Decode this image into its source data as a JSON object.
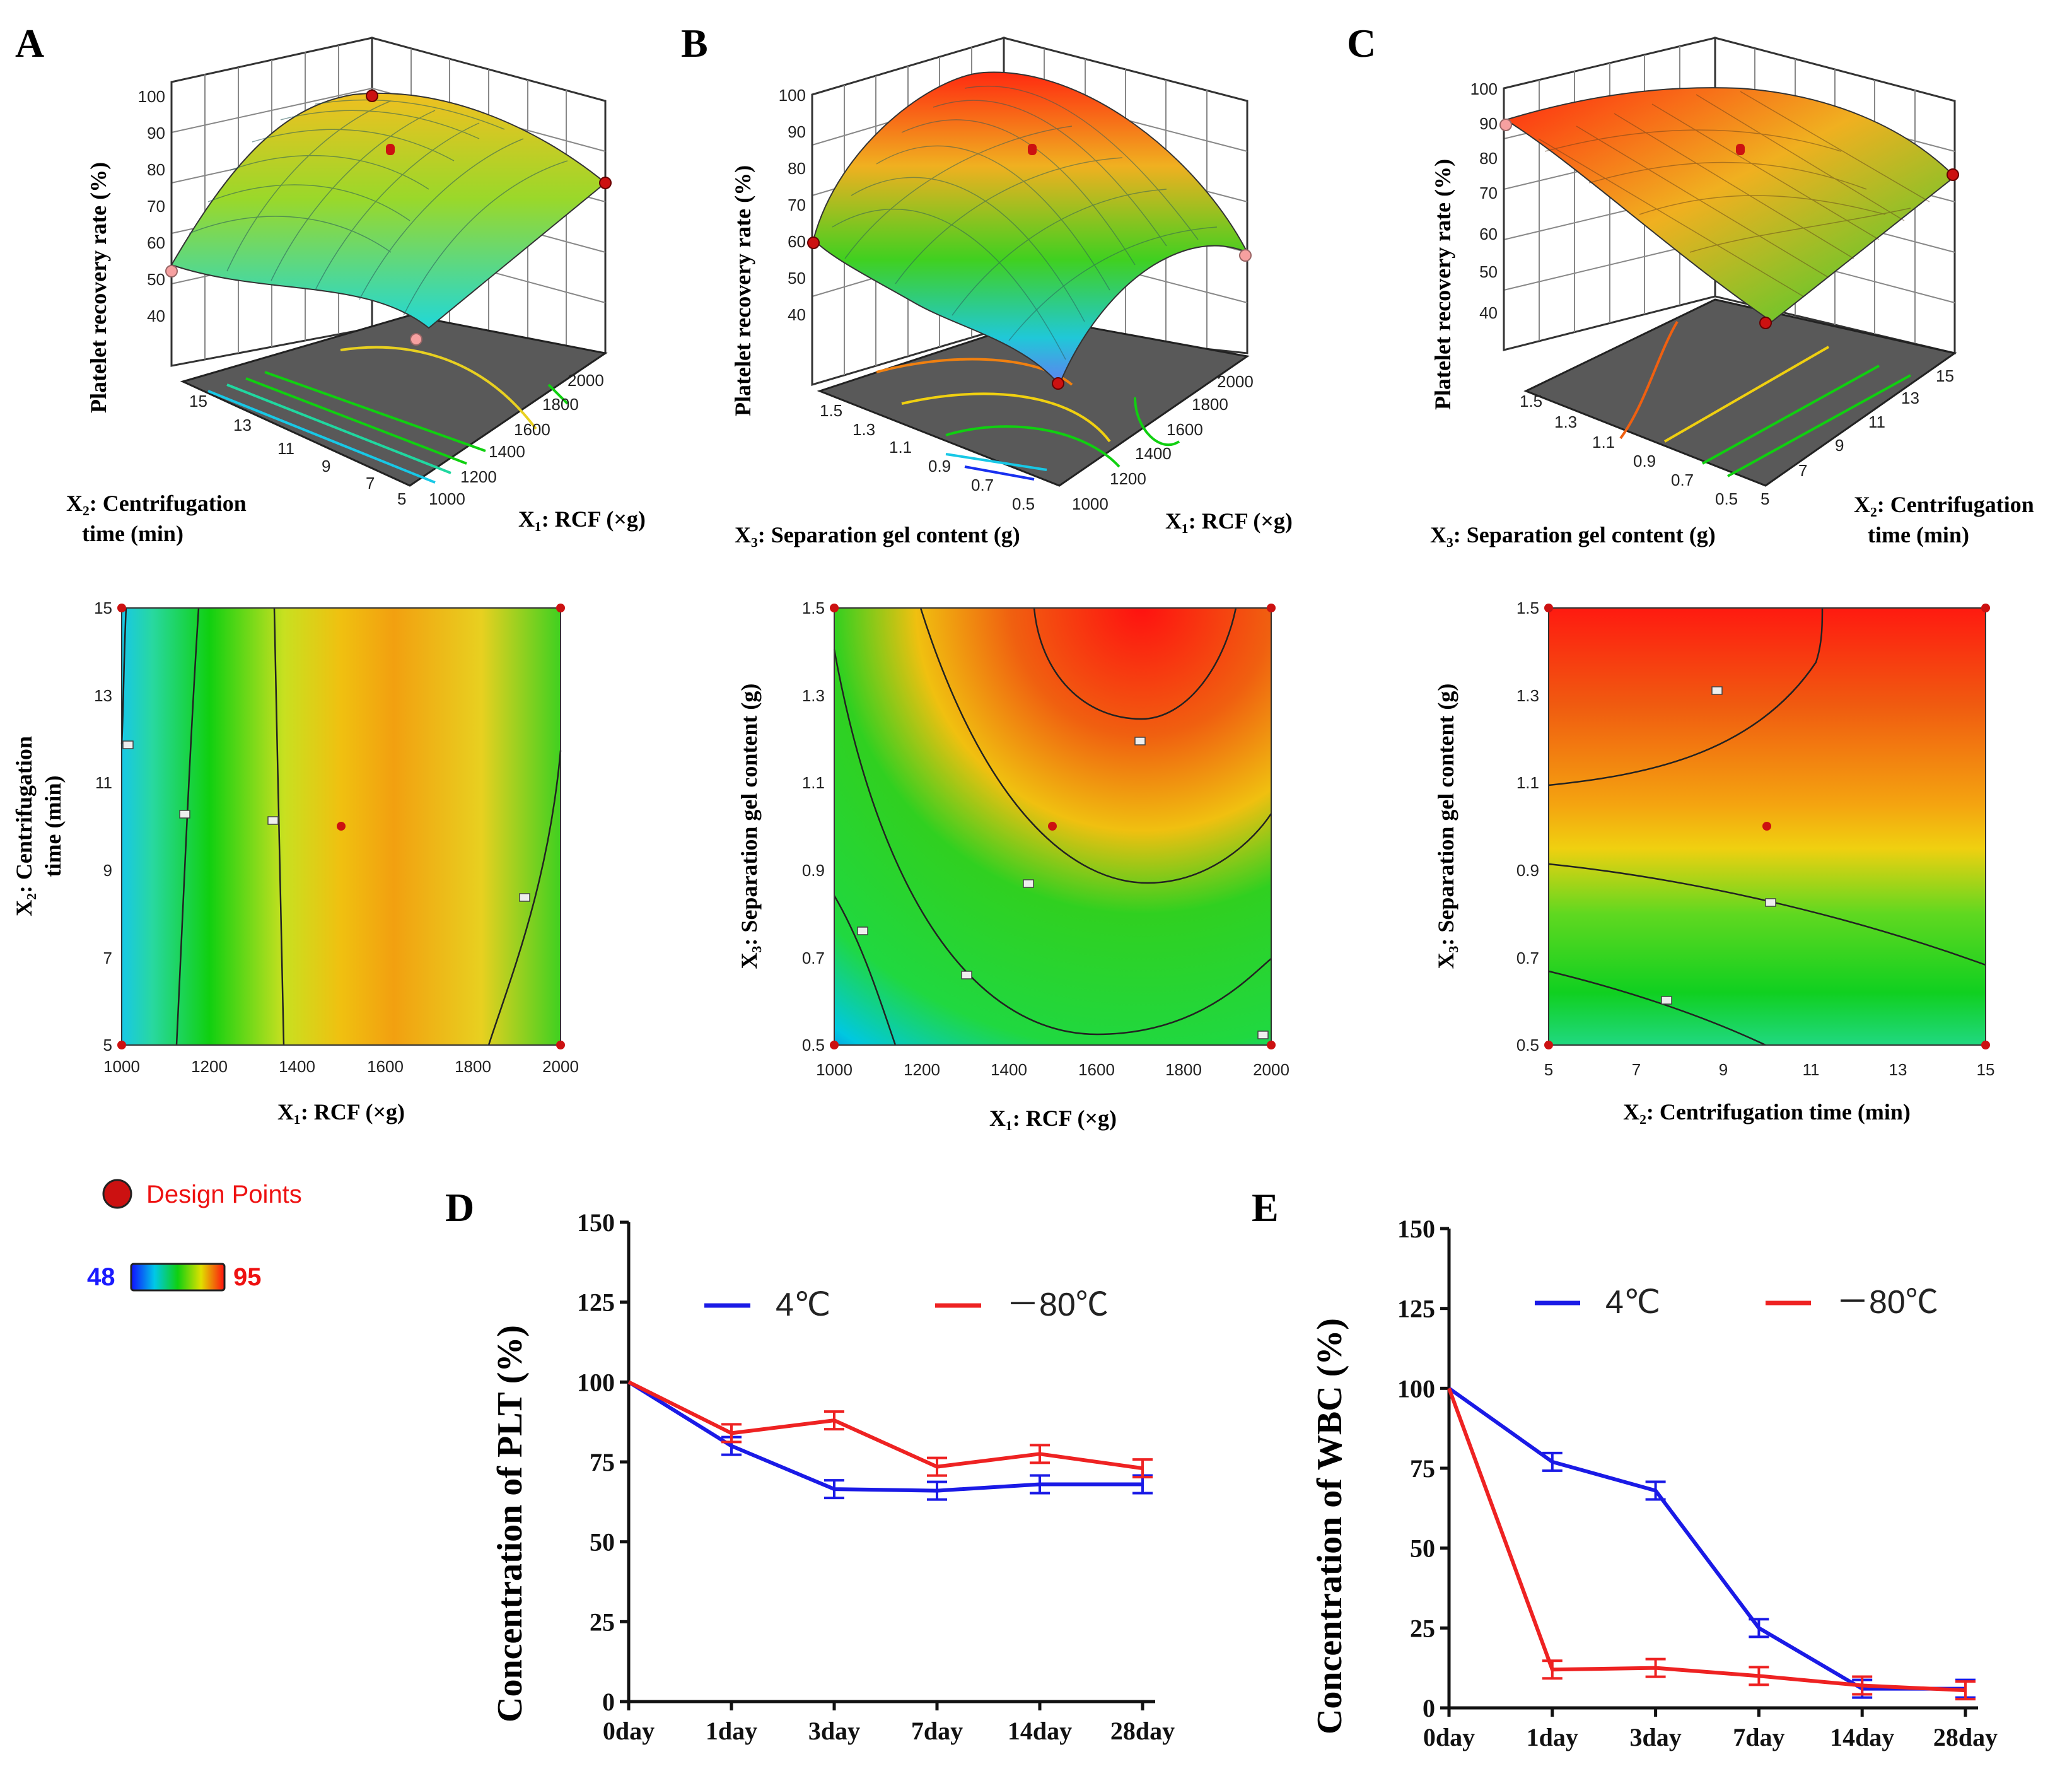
{
  "colors": {
    "design_point": "#cc1111",
    "line_4C": "#1a1ae6",
    "line_80C": "#ee2222",
    "scale_low_label": "#1a1aff",
    "scale_high_label": "#ee1111",
    "contour_plot_bg": "#595959"
  },
  "legend_panel": {
    "design_points_label": "Design Points",
    "color_scale": {
      "low": "48",
      "high": "95"
    }
  },
  "chart_data": [
    {
      "panel": "A",
      "type": "surface3d",
      "zlabel": "Platelet recovery rate (%)",
      "zticks": [
        "40",
        "50",
        "60",
        "70",
        "80",
        "90",
        "100"
      ],
      "xlabel": "X₁: RCF (×g)",
      "xticks": [
        "1000",
        "1200",
        "1400",
        "1600",
        "1800",
        "2000"
      ],
      "ylabel_line1": "X₂: Centrifugation",
      "ylabel_line2": "time (min)",
      "yticks": [
        "5",
        "7",
        "9",
        "11",
        "13",
        "15"
      ]
    },
    {
      "panel": "B",
      "type": "surface3d",
      "zlabel": "Platelet recovery rate (%)",
      "zticks": [
        "40",
        "50",
        "60",
        "70",
        "80",
        "90",
        "100"
      ],
      "xlabel": "X₁: RCF (×g)",
      "xticks": [
        "1000",
        "1200",
        "1400",
        "1600",
        "1800",
        "2000"
      ],
      "ylabel": "X₃: Separation gel content (g)",
      "yticks": [
        "0.5",
        "0.7",
        "0.9",
        "1.1",
        "1.3",
        "1.5"
      ]
    },
    {
      "panel": "C",
      "type": "surface3d",
      "zlabel": "Platelet recovery rate (%)",
      "zticks": [
        "40",
        "50",
        "60",
        "70",
        "80",
        "90",
        "100"
      ],
      "xlabel": "X₃: Separation gel content (g)",
      "xticks": [
        "0.5",
        "0.7",
        "0.9",
        "1.1",
        "1.3",
        "1.5"
      ],
      "ylabel_line1": "X₂: Centrifugation",
      "ylabel_line2": "time (min)",
      "yticks": [
        "5",
        "7",
        "9",
        "11",
        "13",
        "15"
      ]
    },
    {
      "panel": "A",
      "type": "heatmap",
      "xlabel": "X₁: RCF (×g)",
      "xlim": [
        1000,
        2000
      ],
      "xticks": [
        "1000",
        "1200",
        "1400",
        "1600",
        "1800",
        "2000"
      ],
      "ylabel_line1": "X₂: Centrifugation",
      "ylabel_line2": "time (min)",
      "ylim": [
        5,
        15
      ],
      "yticks": [
        "5",
        "7",
        "9",
        "11",
        "13",
        "15"
      ],
      "design_points": [
        [
          1000,
          15
        ],
        [
          2000,
          15
        ],
        [
          1000,
          5
        ],
        [
          2000,
          5
        ],
        [
          1500,
          10
        ]
      ]
    },
    {
      "panel": "B",
      "type": "heatmap",
      "xlabel": "X₁: RCF (×g)",
      "xlim": [
        1000,
        2000
      ],
      "xticks": [
        "1000",
        "1200",
        "1400",
        "1600",
        "1800",
        "2000"
      ],
      "ylabel": "X₃: Separation gel content (g)",
      "ylim": [
        0.5,
        1.5
      ],
      "yticks": [
        "0.5",
        "0.7",
        "0.9",
        "1.1",
        "1.3",
        "1.5"
      ],
      "design_points": [
        [
          1000,
          1.5
        ],
        [
          2000,
          1.5
        ],
        [
          1000,
          0.5
        ],
        [
          2000,
          0.5
        ],
        [
          1500,
          1.0
        ]
      ]
    },
    {
      "panel": "C",
      "type": "heatmap",
      "xlabel": "X₂: Centrifugation time (min)",
      "xlim": [
        5,
        15
      ],
      "xticks": [
        "5",
        "7",
        "9",
        "11",
        "13",
        "15"
      ],
      "ylabel": "X₃: Separation gel content (g)",
      "ylim": [
        0.5,
        1.5
      ],
      "yticks": [
        "0.5",
        "0.7",
        "0.9",
        "1.1",
        "1.3",
        "1.5"
      ],
      "design_points": [
        [
          5,
          1.5
        ],
        [
          15,
          1.5
        ],
        [
          5,
          0.5
        ],
        [
          15,
          0.5
        ],
        [
          10,
          1.0
        ]
      ]
    },
    {
      "panel": "D",
      "type": "line",
      "ylabel": "Concentration of PLT (%)",
      "ylim": [
        0,
        150
      ],
      "yticks": [
        "0",
        "25",
        "50",
        "75",
        "100",
        "125",
        "150"
      ],
      "categories": [
        "0day",
        "1day",
        "3day",
        "7day",
        "14day",
        "28day"
      ],
      "series": [
        {
          "name": "4℃",
          "values": [
            100,
            80,
            66.5,
            66,
            68,
            68
          ]
        },
        {
          "name": "－80℃",
          "values": [
            100,
            84,
            88,
            73.5,
            77.5,
            73
          ]
        }
      ]
    },
    {
      "panel": "E",
      "type": "line",
      "ylabel": "Concentration of WBC (%)",
      "ylim": [
        0,
        150
      ],
      "yticks": [
        "0",
        "25",
        "50",
        "75",
        "100",
        "125",
        "150"
      ],
      "categories": [
        "0day",
        "1day",
        "3day",
        "7day",
        "14day",
        "28day"
      ],
      "series": [
        {
          "name": "4℃",
          "values": [
            100,
            77,
            68,
            25,
            6,
            6
          ]
        },
        {
          "name": "－80℃",
          "values": [
            100,
            12,
            12.5,
            10,
            7,
            5.5
          ]
        }
      ]
    }
  ]
}
